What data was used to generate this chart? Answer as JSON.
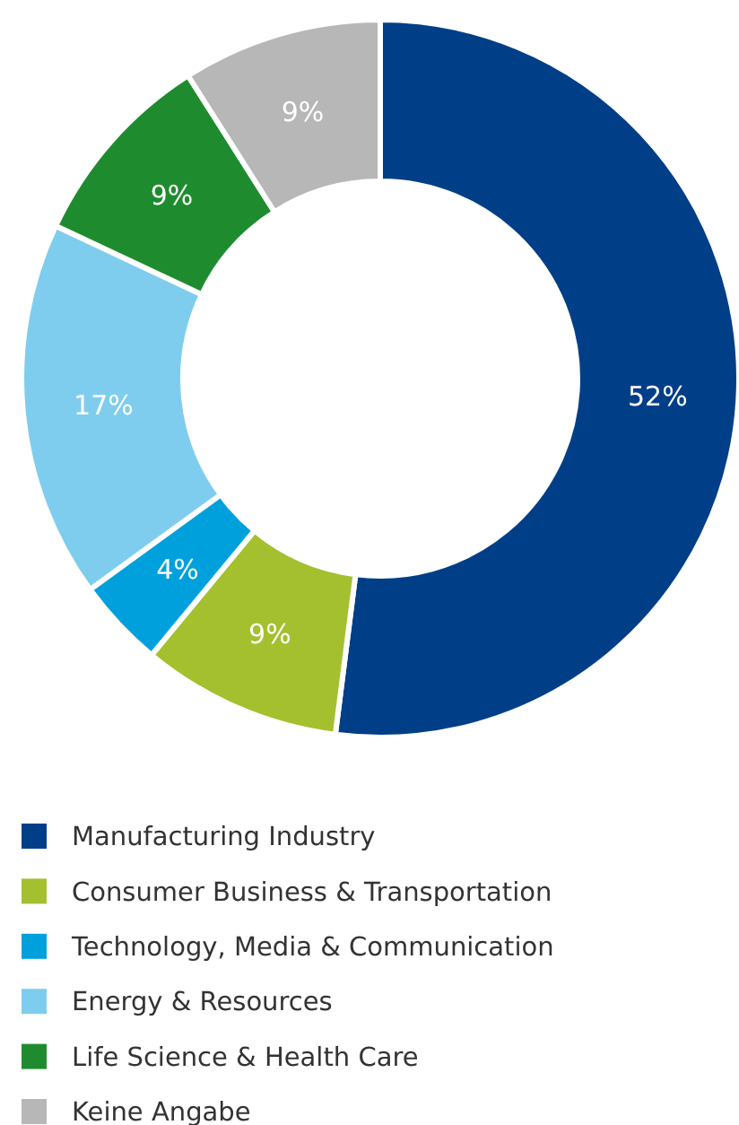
{
  "chart_data": {
    "type": "donut",
    "categories": [
      "Manufacturing Industry",
      "Consumer Business & Transportation",
      "Technology, Media & Communication",
      "Energy & Resources",
      "Life Science & Health Care",
      "Keine Angabe"
    ],
    "values": [
      52,
      9,
      4,
      17,
      9,
      9
    ],
    "colors": [
      "#003f87",
      "#a4c02f",
      "#00a0dd",
      "#7fcdee",
      "#1e8c2e",
      "#b7b7b7"
    ],
    "value_labels": [
      "52%",
      "9%",
      "4%",
      "17%",
      "9%",
      "9%"
    ],
    "legend": "bottom"
  }
}
